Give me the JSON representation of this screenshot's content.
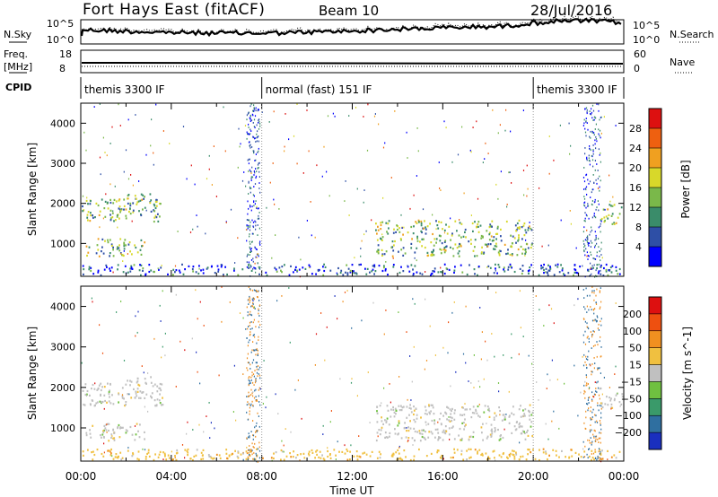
{
  "header": {
    "station": "Fort Hays East (fitACF)",
    "beam": "Beam 10",
    "date": "28/Jul/2016"
  },
  "side_labels": {
    "nsky": "N.Sky",
    "nsearch": "N.Search",
    "freq_line1": "Freq.",
    "freq_line2": "[MHz]",
    "nave": "Nave",
    "cpid": "CPID"
  },
  "noise_panel": {
    "left_ticks": [
      "10^5",
      "10^0"
    ],
    "right_ticks": [
      "10^5",
      "10^0"
    ]
  },
  "freq_panel": {
    "left_ticks": [
      "18",
      "8"
    ],
    "right_ticks": [
      "60",
      "0"
    ]
  },
  "cpid_segments": [
    {
      "label": "themis 3300 IF",
      "start_h": 0.0
    },
    {
      "label": "normal (fast) 151 IF",
      "start_h": 8.0
    },
    {
      "label": "themis 3300 IF",
      "start_h": 20.0
    }
  ],
  "chart_data": [
    {
      "type": "heatmap",
      "title": "",
      "xlabel": "Time UT",
      "ylabel": "Slant Range [km]",
      "xlim": [
        0,
        24
      ],
      "ylim": [
        180,
        4500
      ],
      "x_ticks": [
        "00:00",
        "04:00",
        "08:00",
        "12:00",
        "16:00",
        "20:00",
        "00:00"
      ],
      "y_ticks": [
        1000,
        2000,
        3000,
        4000
      ],
      "colorbar": {
        "label": "Power [dB]",
        "ticks": [
          "4",
          "8",
          "12",
          "16",
          "20",
          "24",
          "28"
        ],
        "colors": [
          "#0000ff",
          "#2e4fa6",
          "#3a8c6a",
          "#7ab84a",
          "#d8d82a",
          "#f0a020",
          "#ee6010",
          "#dd1010"
        ]
      },
      "scatter_regions": [
        {
          "t0": 0.0,
          "t1": 3.6,
          "r0": 1500,
          "r1": 2200,
          "level": 3
        },
        {
          "t0": 0.2,
          "t1": 2.8,
          "r0": 700,
          "r1": 1150,
          "level": 3
        },
        {
          "t0": 13.0,
          "t1": 20.0,
          "r0": 700,
          "r1": 1600,
          "level": 3
        },
        {
          "t0": 0.0,
          "t1": 24.0,
          "r0": 180,
          "r1": 500,
          "level": 1
        },
        {
          "t0": 22.9,
          "t1": 24.0,
          "r0": 1500,
          "r1": 2000,
          "level": 3
        }
      ]
    },
    {
      "type": "heatmap",
      "title": "",
      "xlabel": "Time UT",
      "ylabel": "Slant Range [km]",
      "xlim": [
        0,
        24
      ],
      "ylim": [
        180,
        4500
      ],
      "x_ticks": [
        "00:00",
        "04:00",
        "08:00",
        "12:00",
        "16:00",
        "20:00",
        "00:00"
      ],
      "y_ticks": [
        1000,
        2000,
        3000,
        4000
      ],
      "colorbar": {
        "label": "Velocity [m s^-1]",
        "ticks": [
          "200",
          "100",
          "50",
          "15",
          "−15",
          "−50",
          "−100",
          "−200"
        ],
        "colors": [
          "#1a2fbf",
          "#2f6fa0",
          "#3a9a6a",
          "#6fc040",
          "#c0c0c0",
          "#f0c040",
          "#f09020",
          "#ee5010",
          "#dd1010"
        ]
      },
      "scatter_regions": [
        {
          "t0": 0.0,
          "t1": 3.6,
          "r0": 1500,
          "r1": 2200,
          "level": 4
        },
        {
          "t0": 0.2,
          "t1": 2.8,
          "r0": 700,
          "r1": 1150,
          "level": 4
        },
        {
          "t0": 13.0,
          "t1": 20.0,
          "r0": 700,
          "r1": 1600,
          "level": 4
        },
        {
          "t0": 0.0,
          "t1": 24.0,
          "r0": 180,
          "r1": 500,
          "level": 5
        },
        {
          "t0": 22.9,
          "t1": 24.0,
          "r0": 1500,
          "r1": 2000,
          "level": 4
        }
      ]
    }
  ]
}
